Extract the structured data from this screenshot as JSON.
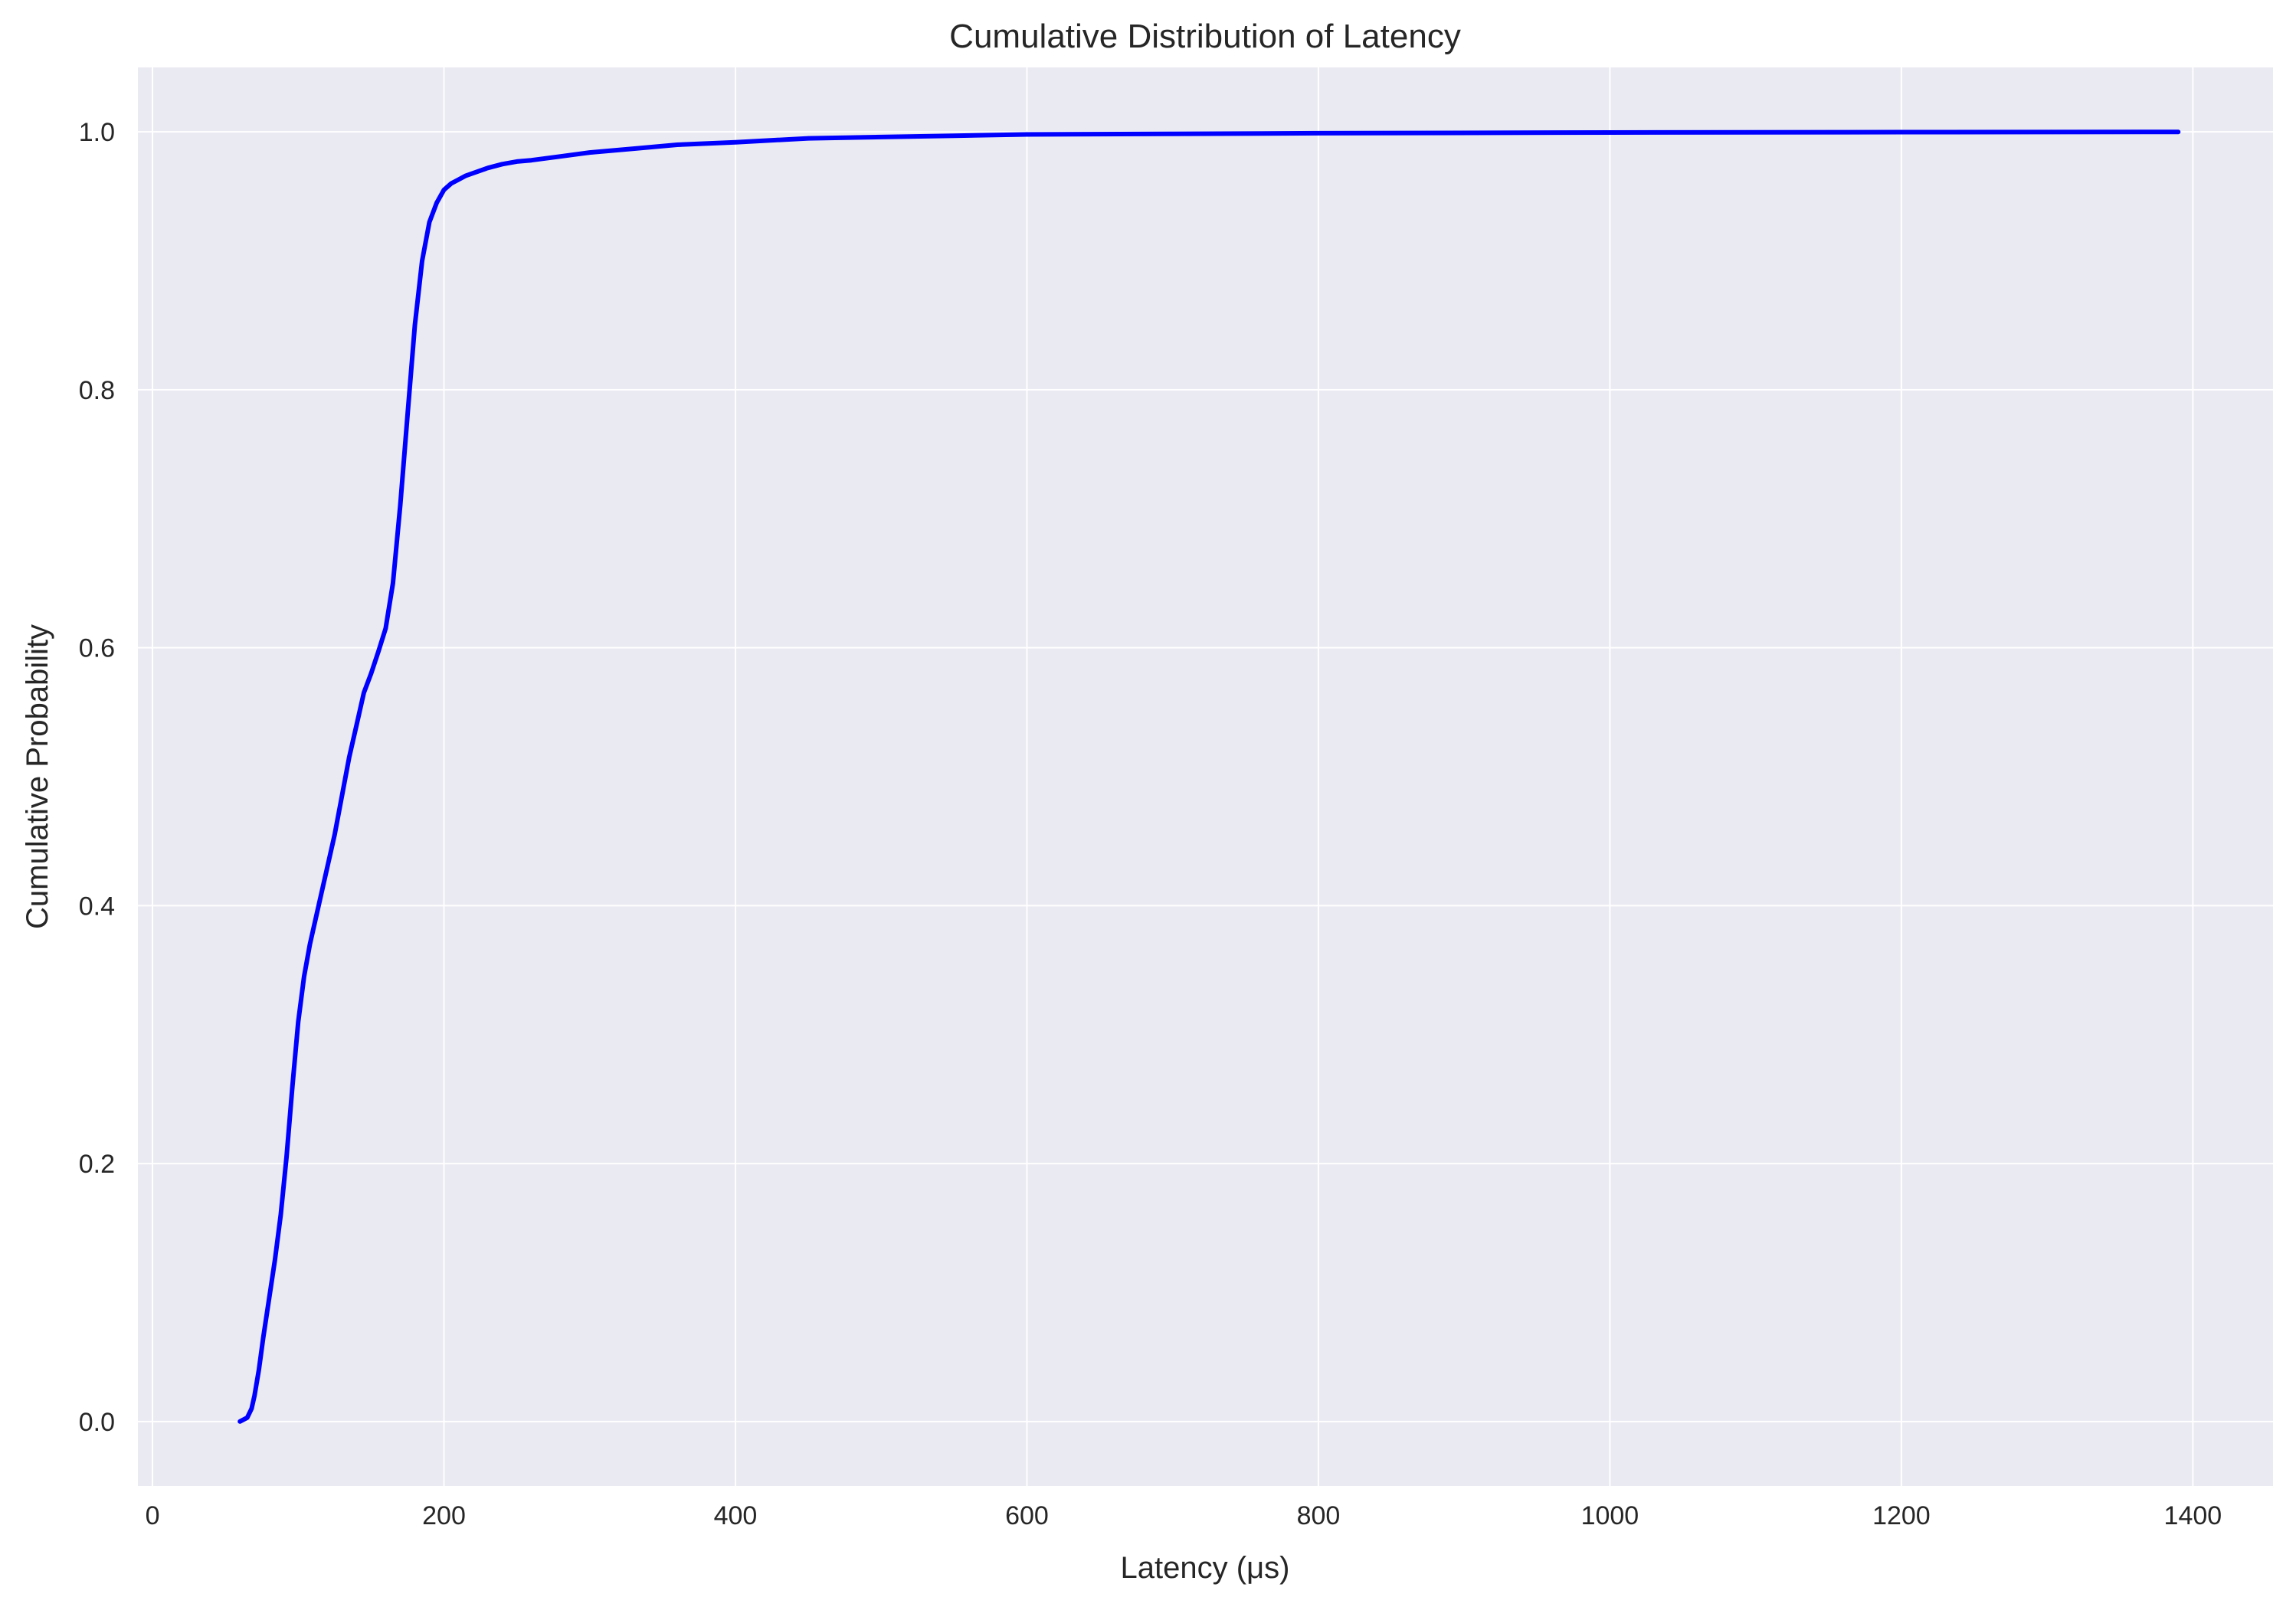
{
  "chart_data": {
    "type": "line",
    "title": "Cumulative Distribution of Latency",
    "xlabel": "Latency (μs)",
    "ylabel": "Cumulative Probability",
    "xlim": [
      -10,
      1455
    ],
    "ylim": [
      -0.05,
      1.05
    ],
    "xticks": [
      0,
      200,
      400,
      600,
      800,
      1000,
      1200,
      1400
    ],
    "yticks": [
      0.0,
      0.2,
      0.4,
      0.6,
      0.8,
      1.0
    ],
    "xtick_labels": [
      "0",
      "200",
      "400",
      "600",
      "800",
      "1000",
      "1200",
      "1400"
    ],
    "ytick_labels": [
      "0.0",
      "0.2",
      "0.4",
      "0.6",
      "0.8",
      "1.0"
    ],
    "grid": true,
    "background": "#eaeaf2",
    "grid_color": "#ffffff",
    "series": [
      {
        "color": "#0000ff",
        "x": [
          60,
          65,
          68,
          70,
          73,
          76,
          80,
          84,
          88,
          92,
          96,
          100,
          104,
          108,
          112,
          116,
          120,
          125,
          130,
          135,
          140,
          145,
          150,
          155,
          160,
          165,
          170,
          175,
          180,
          185,
          190,
          195,
          200,
          205,
          210,
          215,
          220,
          230,
          240,
          250,
          260,
          280,
          300,
          330,
          360,
          400,
          450,
          500,
          550,
          600,
          700,
          800,
          1000,
          1200,
          1390
        ],
        "y": [
          0.0,
          0.003,
          0.01,
          0.02,
          0.04,
          0.065,
          0.095,
          0.125,
          0.16,
          0.205,
          0.26,
          0.31,
          0.345,
          0.37,
          0.39,
          0.41,
          0.43,
          0.455,
          0.485,
          0.515,
          0.54,
          0.565,
          0.58,
          0.597,
          0.615,
          0.65,
          0.71,
          0.78,
          0.85,
          0.9,
          0.93,
          0.945,
          0.955,
          0.96,
          0.963,
          0.966,
          0.968,
          0.972,
          0.975,
          0.977,
          0.978,
          0.981,
          0.984,
          0.987,
          0.99,
          0.992,
          0.995,
          0.996,
          0.997,
          0.998,
          0.9985,
          0.999,
          0.9995,
          0.9998,
          1.0
        ]
      }
    ]
  }
}
